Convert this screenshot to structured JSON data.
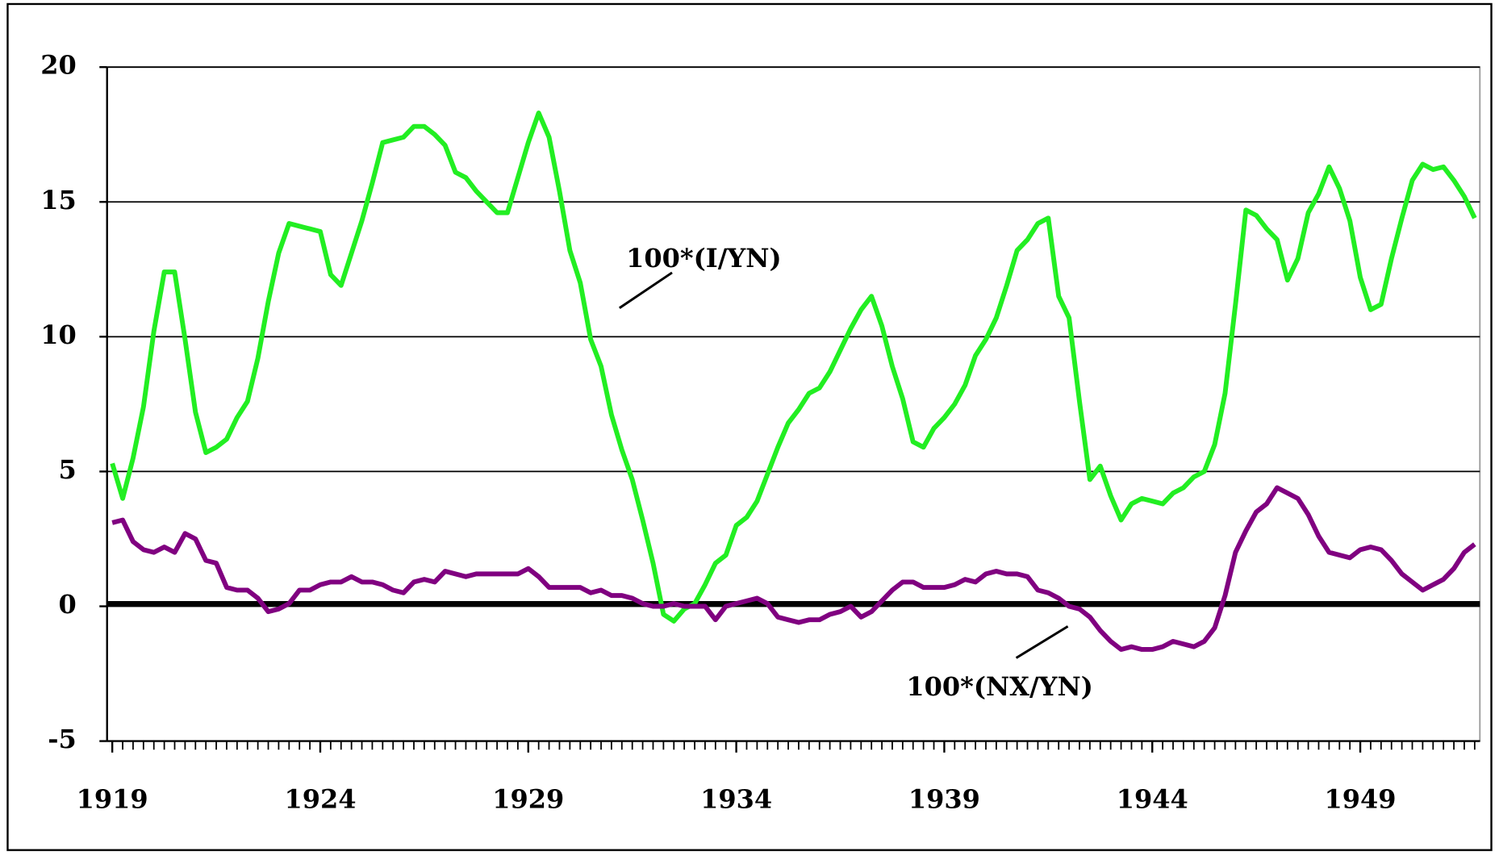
{
  "chart_data": {
    "type": "line",
    "annotations": [
      "100*(I/YN)",
      "100*(NX/YN)"
    ],
    "x": [
      1919,
      1919.25,
      1919.5,
      1919.75,
      1920,
      1920.25,
      1920.5,
      1920.75,
      1921,
      1921.25,
      1921.5,
      1921.75,
      1922,
      1922.25,
      1922.5,
      1922.75,
      1923,
      1923.25,
      1923.5,
      1923.75,
      1924,
      1924.25,
      1924.5,
      1924.75,
      1925,
      1925.25,
      1925.5,
      1925.75,
      1926,
      1926.25,
      1926.5,
      1926.75,
      1927,
      1927.25,
      1927.5,
      1927.75,
      1928,
      1928.25,
      1928.5,
      1928.75,
      1929,
      1929.25,
      1929.5,
      1929.75,
      1930,
      1930.25,
      1930.5,
      1930.75,
      1931,
      1931.25,
      1931.5,
      1931.75,
      1932,
      1932.25,
      1932.5,
      1932.75,
      1933,
      1933.25,
      1933.5,
      1933.75,
      1934,
      1934.25,
      1934.5,
      1934.75,
      1935,
      1935.25,
      1935.5,
      1935.75,
      1936,
      1936.25,
      1936.5,
      1936.75,
      1937,
      1937.25,
      1937.5,
      1937.75,
      1938,
      1938.25,
      1938.5,
      1938.75,
      1939,
      1939.25,
      1939.5,
      1939.75,
      1940,
      1940.25,
      1940.5,
      1940.75,
      1941,
      1941.25,
      1941.5,
      1941.75,
      1942,
      1942.25,
      1942.5,
      1942.75,
      1943,
      1943.25,
      1943.5,
      1943.75,
      1944,
      1944.25,
      1944.5,
      1944.75,
      1945,
      1945.25,
      1945.5,
      1945.75,
      1946,
      1946.25,
      1946.5,
      1946.75,
      1947,
      1947.25,
      1947.5,
      1947.75,
      1948,
      1948.25,
      1948.5,
      1948.75,
      1949,
      1949.25,
      1949.5,
      1949.75,
      1950,
      1950.25,
      1950.5,
      1950.75,
      1951,
      1951.25,
      1951.5,
      1951.75
    ],
    "series": [
      {
        "color": "#22ee22",
        "values": [
          5.3,
          4.0,
          5.5,
          7.4,
          10.2,
          12.4,
          12.4,
          9.9,
          7.2,
          5.7,
          5.9,
          6.2,
          7.0,
          7.6,
          9.2,
          11.3,
          13.1,
          14.2,
          14.1,
          14.0,
          13.9,
          12.3,
          11.9,
          13.1,
          14.3,
          15.7,
          17.2,
          17.3,
          17.4,
          17.8,
          17.8,
          17.5,
          17.1,
          16.1,
          15.9,
          15.4,
          15.0,
          14.6,
          14.6,
          15.9,
          17.2,
          18.3,
          17.4,
          15.4,
          13.2,
          12.0,
          9.9,
          8.9,
          7.1,
          5.8,
          4.7,
          3.2,
          1.6,
          -0.3,
          -0.55,
          -0.1,
          0.1,
          0.8,
          1.6,
          1.9,
          3.0,
          3.3,
          3.9,
          4.9,
          5.9,
          6.8,
          7.3,
          7.9,
          8.1,
          8.7,
          9.5,
          10.3,
          11.0,
          11.5,
          10.4,
          8.9,
          7.7,
          6.1,
          5.9,
          6.6,
          7.0,
          7.5,
          8.2,
          9.3,
          9.9,
          10.7,
          11.9,
          13.2,
          13.6,
          14.2,
          14.4,
          11.5,
          10.7,
          7.6,
          4.7,
          5.2,
          4.1,
          3.2,
          3.8,
          4.0,
          3.9,
          3.8,
          4.2,
          4.4,
          4.8,
          5.0,
          6.0,
          7.9,
          11.2,
          14.7,
          14.5,
          14.0,
          13.6,
          12.1,
          12.9,
          14.6,
          15.3,
          16.3,
          15.5,
          14.3,
          12.2,
          11.0,
          11.2,
          12.9,
          14.4,
          15.8,
          16.4,
          16.2,
          16.3,
          15.8,
          15.2,
          14.4
        ]
      },
      {
        "color": "#800080",
        "values": [
          3.1,
          3.2,
          2.4,
          2.1,
          2.0,
          2.2,
          2.0,
          2.7,
          2.5,
          1.7,
          1.6,
          0.7,
          0.6,
          0.6,
          0.3,
          -0.2,
          -0.1,
          0.1,
          0.6,
          0.6,
          0.8,
          0.9,
          0.9,
          1.1,
          0.9,
          0.9,
          0.8,
          0.6,
          0.5,
          0.9,
          1.0,
          0.9,
          1.3,
          1.2,
          1.1,
          1.2,
          1.2,
          1.2,
          1.2,
          1.2,
          1.4,
          1.1,
          0.7,
          0.7,
          0.7,
          0.7,
          0.5,
          0.6,
          0.4,
          0.4,
          0.3,
          0.1,
          0.0,
          0.0,
          0.1,
          0.0,
          0.0,
          0.0,
          -0.5,
          0.0,
          0.1,
          0.2,
          0.3,
          0.1,
          -0.4,
          -0.5,
          -0.6,
          -0.5,
          -0.5,
          -0.3,
          -0.2,
          0.0,
          -0.4,
          -0.2,
          0.2,
          0.6,
          0.9,
          0.9,
          0.7,
          0.7,
          0.7,
          0.8,
          1.0,
          0.9,
          1.2,
          1.3,
          1.2,
          1.2,
          1.1,
          0.6,
          0.5,
          0.3,
          0.0,
          -0.1,
          -0.4,
          -0.9,
          -1.3,
          -1.6,
          -1.5,
          -1.6,
          -1.6,
          -1.5,
          -1.3,
          -1.4,
          -1.5,
          -1.3,
          -0.8,
          0.4,
          2.0,
          2.8,
          3.5,
          3.8,
          4.4,
          4.2,
          4.0,
          3.4,
          2.6,
          2.0,
          1.9,
          1.8,
          2.1,
          2.2,
          2.1,
          1.7,
          1.2,
          0.9,
          0.6,
          0.8,
          1.0,
          1.4,
          2.0,
          2.3
        ]
      }
    ],
    "xlim": [
      1918.875,
      1951.875
    ],
    "xticks": [
      1919,
      1924,
      1929,
      1934,
      1939,
      1944,
      1949
    ],
    "ylim": [
      -5,
      20
    ],
    "yticks": [
      -5,
      0,
      5,
      10,
      15,
      20
    ],
    "grid": true
  }
}
